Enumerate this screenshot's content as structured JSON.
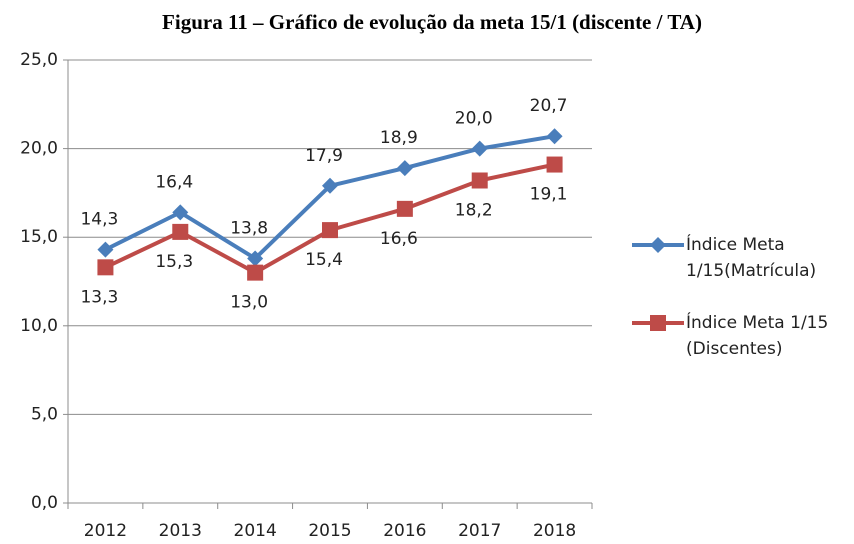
{
  "chart_data": {
    "type": "line",
    "title": "Figura 11 – Gráfico de evolução da meta 15/1 (discente / TA)",
    "categories": [
      "2012",
      "2013",
      "2014",
      "2015",
      "2016",
      "2017",
      "2018"
    ],
    "series": [
      {
        "name": "Índice Meta 1/15(Matrícula)",
        "color": "#4a7ebb",
        "marker": "diamond",
        "label_position": "above",
        "values": [
          14.3,
          16.4,
          13.8,
          17.9,
          18.9,
          20.0,
          20.7
        ],
        "value_labels": [
          "14,3",
          "16,4",
          "13,8",
          "17,9",
          "18,9",
          "20,0",
          "20,7"
        ]
      },
      {
        "name": "Índice Meta 1/15 (Discentes)",
        "color": "#be4b48",
        "marker": "square",
        "label_position": "below",
        "values": [
          13.3,
          15.3,
          13.0,
          15.4,
          16.6,
          18.2,
          19.1
        ],
        "value_labels": [
          "13,3",
          "15,3",
          "13,0",
          "15,4",
          "16,6",
          "18,2",
          "19,1"
        ]
      }
    ],
    "ylim": [
      0,
      25
    ],
    "yticks": [
      {
        "value": 0,
        "label": "0,0"
      },
      {
        "value": 5,
        "label": "5,0"
      },
      {
        "value": 10,
        "label": "10,0"
      },
      {
        "value": 15,
        "label": "15,0"
      },
      {
        "value": 20,
        "label": "20,0"
      },
      {
        "value": 25,
        "label": "25,0"
      }
    ],
    "grid": true,
    "legend": "right"
  }
}
